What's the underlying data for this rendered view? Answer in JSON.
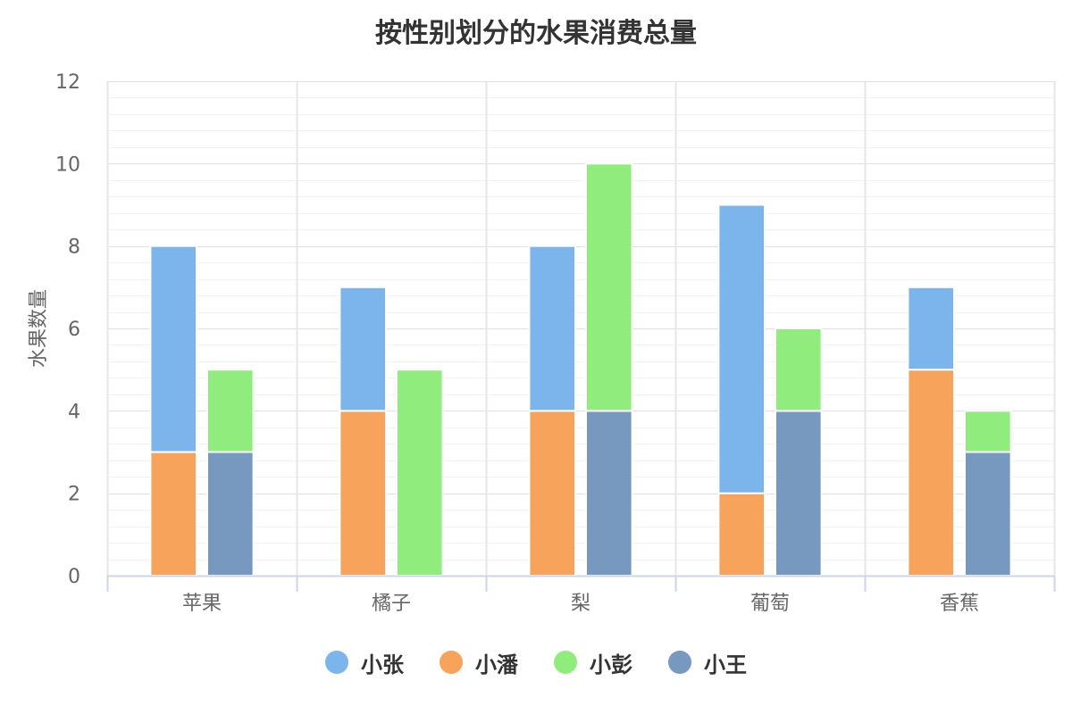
{
  "chart_data": {
    "type": "bar",
    "stacked": true,
    "title": "按性别划分的水果消费总量",
    "ylabel": "水果数量",
    "xlabel": "",
    "ylim": [
      0,
      12
    ],
    "yticks": [
      0,
      2,
      4,
      6,
      8,
      10,
      12
    ],
    "grid": true,
    "legend_position": "bottom",
    "categories": [
      "苹果",
      "橘子",
      "梨",
      "葡萄",
      "香蕉"
    ],
    "stacks": [
      "stack1",
      "stack2"
    ],
    "series": [
      {
        "name": "小张",
        "stack": "stack1",
        "color": "#7cb5ec",
        "values": [
          5,
          3,
          4,
          7,
          2
        ]
      },
      {
        "name": "小潘",
        "stack": "stack1",
        "color": "#f7a35c",
        "values": [
          3,
          4,
          4,
          2,
          5
        ]
      },
      {
        "name": "小彭",
        "stack": "stack2",
        "color": "#90ed7d",
        "values": [
          2,
          5,
          6,
          2,
          1
        ]
      },
      {
        "name": "小王",
        "stack": "stack2",
        "color": "#7798bf",
        "values": [
          3,
          0,
          4,
          4,
          3
        ]
      }
    ]
  }
}
